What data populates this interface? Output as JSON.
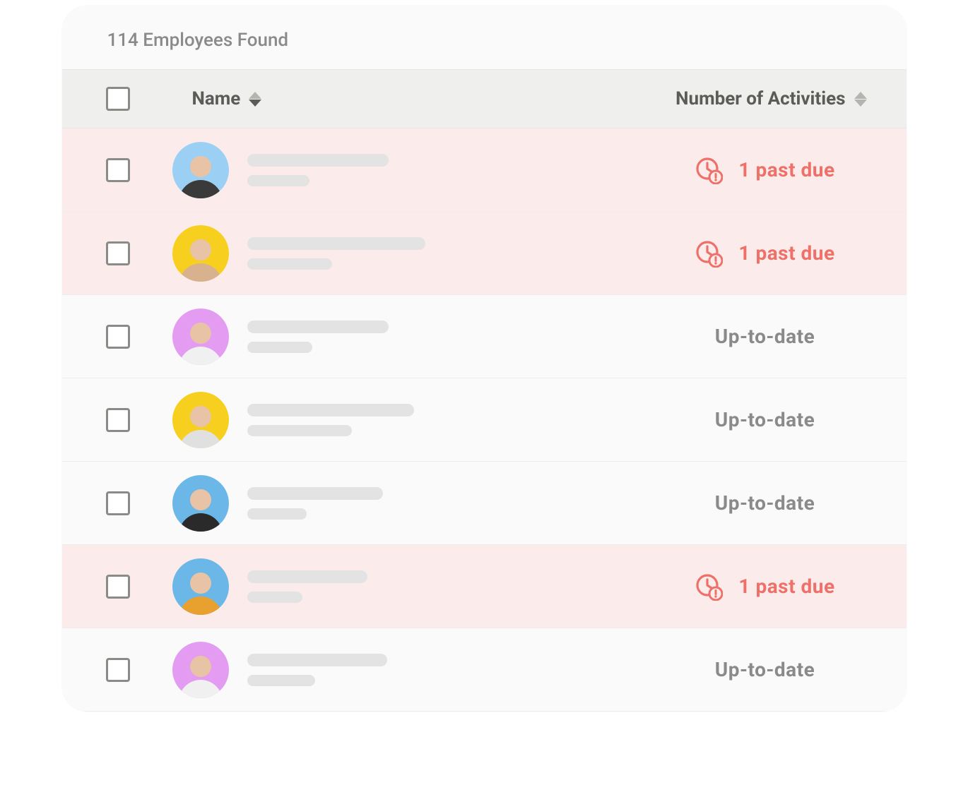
{
  "colors": {
    "card_bg": "#fafafa",
    "header_bg": "#efefed",
    "row_pastdue_bg": "#fbeceb",
    "pastdue_text": "#ed7168",
    "uptodate_text": "#8a8a8a",
    "placeholder": "#e3e3e3",
    "border": "#ededed",
    "checkbox_border": "#8a8a87",
    "sort_arrow": "#b4b4b0",
    "sort_arrow_active": "#5b5b57"
  },
  "header": {
    "count_label": "114 Employees Found"
  },
  "columns": {
    "name": "Name",
    "activities": "Number of Activities"
  },
  "status_labels": {
    "past_due": "1 past due",
    "up_to_date": "Up-to-date"
  },
  "rows": [
    {
      "status": "past_due",
      "avatar_bg": "#9bd0f4",
      "skin": "#e9c3a6",
      "garb": "#3a3a3a",
      "line1_w": 200,
      "line2_w": 88
    },
    {
      "status": "past_due",
      "avatar_bg": "#f7cf1f",
      "skin": "#e9c3a6",
      "garb": "#d8b28e",
      "line1_w": 252,
      "line2_w": 120
    },
    {
      "status": "up_to_date",
      "avatar_bg": "#e49cf2",
      "skin": "#e9c3a6",
      "garb": "#f0f0f0",
      "line1_w": 200,
      "line2_w": 92
    },
    {
      "status": "up_to_date",
      "avatar_bg": "#f7cf1f",
      "skin": "#e9c3a6",
      "garb": "#e0e0e0",
      "line1_w": 236,
      "line2_w": 148
    },
    {
      "status": "up_to_date",
      "avatar_bg": "#6bb7e8",
      "skin": "#e9c3a6",
      "garb": "#2a2a2a",
      "line1_w": 192,
      "line2_w": 84
    },
    {
      "status": "past_due",
      "avatar_bg": "#6bb7e8",
      "skin": "#e9c3a6",
      "garb": "#e8a12e",
      "line1_w": 170,
      "line2_w": 78
    },
    {
      "status": "up_to_date",
      "avatar_bg": "#e49cf2",
      "skin": "#e9c3a6",
      "garb": "#f0f0f0",
      "line1_w": 198,
      "line2_w": 96
    }
  ]
}
